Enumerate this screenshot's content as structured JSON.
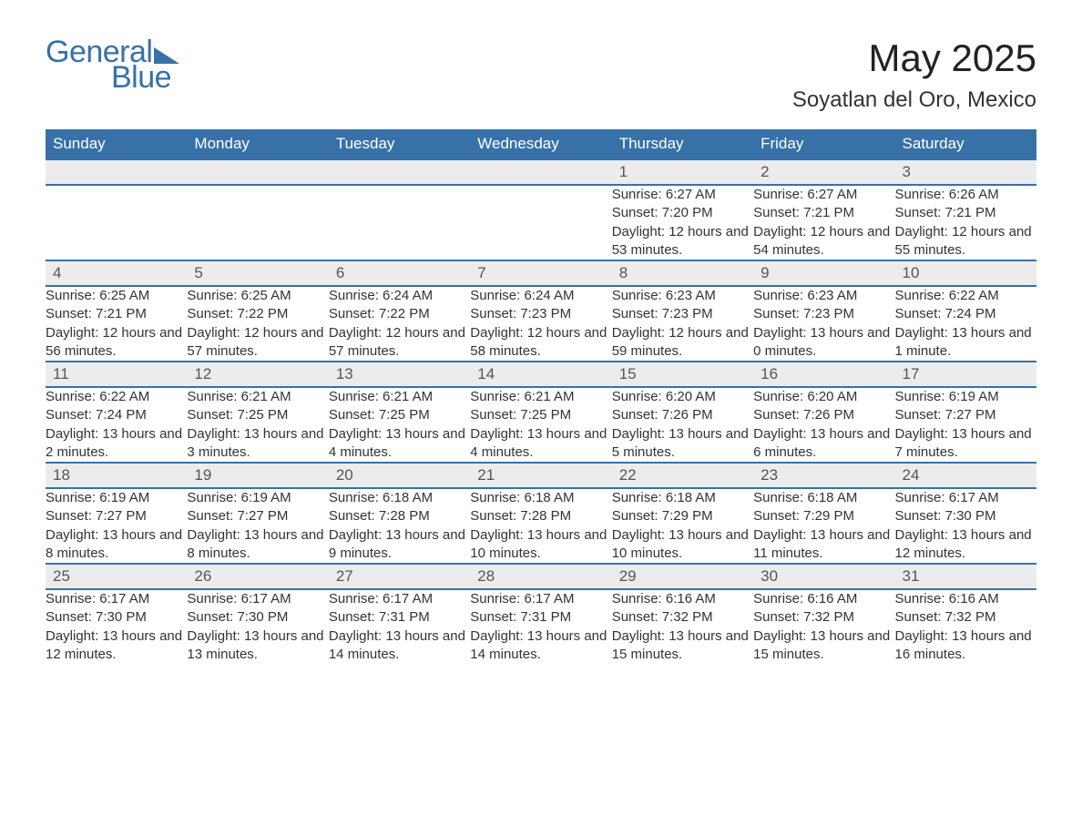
{
  "logo": {
    "text1": "General",
    "text2": "Blue"
  },
  "title": "May 2025",
  "subtitle": "Soyatlan del Oro, Mexico",
  "colors": {
    "brand": "#3771a8",
    "header_bg": "#3771a8",
    "header_text": "#ffffff",
    "daynum_bg": "#ececec",
    "text": "#333333",
    "page_bg": "#ffffff"
  },
  "layout": {
    "cols": 7,
    "rows": 5,
    "cell_fontsize": 15,
    "title_fontsize": 42,
    "subtitle_fontsize": 24
  },
  "weekdays": [
    "Sunday",
    "Monday",
    "Tuesday",
    "Wednesday",
    "Thursday",
    "Friday",
    "Saturday"
  ],
  "weeks": [
    [
      null,
      null,
      null,
      null,
      {
        "n": "1",
        "sunrise": "6:27 AM",
        "sunset": "7:20 PM",
        "daylight": "12 hours and 53 minutes."
      },
      {
        "n": "2",
        "sunrise": "6:27 AM",
        "sunset": "7:21 PM",
        "daylight": "12 hours and 54 minutes."
      },
      {
        "n": "3",
        "sunrise": "6:26 AM",
        "sunset": "7:21 PM",
        "daylight": "12 hours and 55 minutes."
      }
    ],
    [
      {
        "n": "4",
        "sunrise": "6:25 AM",
        "sunset": "7:21 PM",
        "daylight": "12 hours and 56 minutes."
      },
      {
        "n": "5",
        "sunrise": "6:25 AM",
        "sunset": "7:22 PM",
        "daylight": "12 hours and 57 minutes."
      },
      {
        "n": "6",
        "sunrise": "6:24 AM",
        "sunset": "7:22 PM",
        "daylight": "12 hours and 57 minutes."
      },
      {
        "n": "7",
        "sunrise": "6:24 AM",
        "sunset": "7:23 PM",
        "daylight": "12 hours and 58 minutes."
      },
      {
        "n": "8",
        "sunrise": "6:23 AM",
        "sunset": "7:23 PM",
        "daylight": "12 hours and 59 minutes."
      },
      {
        "n": "9",
        "sunrise": "6:23 AM",
        "sunset": "7:23 PM",
        "daylight": "13 hours and 0 minutes."
      },
      {
        "n": "10",
        "sunrise": "6:22 AM",
        "sunset": "7:24 PM",
        "daylight": "13 hours and 1 minute."
      }
    ],
    [
      {
        "n": "11",
        "sunrise": "6:22 AM",
        "sunset": "7:24 PM",
        "daylight": "13 hours and 2 minutes."
      },
      {
        "n": "12",
        "sunrise": "6:21 AM",
        "sunset": "7:25 PM",
        "daylight": "13 hours and 3 minutes."
      },
      {
        "n": "13",
        "sunrise": "6:21 AM",
        "sunset": "7:25 PM",
        "daylight": "13 hours and 4 minutes."
      },
      {
        "n": "14",
        "sunrise": "6:21 AM",
        "sunset": "7:25 PM",
        "daylight": "13 hours and 4 minutes."
      },
      {
        "n": "15",
        "sunrise": "6:20 AM",
        "sunset": "7:26 PM",
        "daylight": "13 hours and 5 minutes."
      },
      {
        "n": "16",
        "sunrise": "6:20 AM",
        "sunset": "7:26 PM",
        "daylight": "13 hours and 6 minutes."
      },
      {
        "n": "17",
        "sunrise": "6:19 AM",
        "sunset": "7:27 PM",
        "daylight": "13 hours and 7 minutes."
      }
    ],
    [
      {
        "n": "18",
        "sunrise": "6:19 AM",
        "sunset": "7:27 PM",
        "daylight": "13 hours and 8 minutes."
      },
      {
        "n": "19",
        "sunrise": "6:19 AM",
        "sunset": "7:27 PM",
        "daylight": "13 hours and 8 minutes."
      },
      {
        "n": "20",
        "sunrise": "6:18 AM",
        "sunset": "7:28 PM",
        "daylight": "13 hours and 9 minutes."
      },
      {
        "n": "21",
        "sunrise": "6:18 AM",
        "sunset": "7:28 PM",
        "daylight": "13 hours and 10 minutes."
      },
      {
        "n": "22",
        "sunrise": "6:18 AM",
        "sunset": "7:29 PM",
        "daylight": "13 hours and 10 minutes."
      },
      {
        "n": "23",
        "sunrise": "6:18 AM",
        "sunset": "7:29 PM",
        "daylight": "13 hours and 11 minutes."
      },
      {
        "n": "24",
        "sunrise": "6:17 AM",
        "sunset": "7:30 PM",
        "daylight": "13 hours and 12 minutes."
      }
    ],
    [
      {
        "n": "25",
        "sunrise": "6:17 AM",
        "sunset": "7:30 PM",
        "daylight": "13 hours and 12 minutes."
      },
      {
        "n": "26",
        "sunrise": "6:17 AM",
        "sunset": "7:30 PM",
        "daylight": "13 hours and 13 minutes."
      },
      {
        "n": "27",
        "sunrise": "6:17 AM",
        "sunset": "7:31 PM",
        "daylight": "13 hours and 14 minutes."
      },
      {
        "n": "28",
        "sunrise": "6:17 AM",
        "sunset": "7:31 PM",
        "daylight": "13 hours and 14 minutes."
      },
      {
        "n": "29",
        "sunrise": "6:16 AM",
        "sunset": "7:32 PM",
        "daylight": "13 hours and 15 minutes."
      },
      {
        "n": "30",
        "sunrise": "6:16 AM",
        "sunset": "7:32 PM",
        "daylight": "13 hours and 15 minutes."
      },
      {
        "n": "31",
        "sunrise": "6:16 AM",
        "sunset": "7:32 PM",
        "daylight": "13 hours and 16 minutes."
      }
    ]
  ],
  "labels": {
    "sunrise": "Sunrise: ",
    "sunset": "Sunset: ",
    "daylight": "Daylight: "
  }
}
